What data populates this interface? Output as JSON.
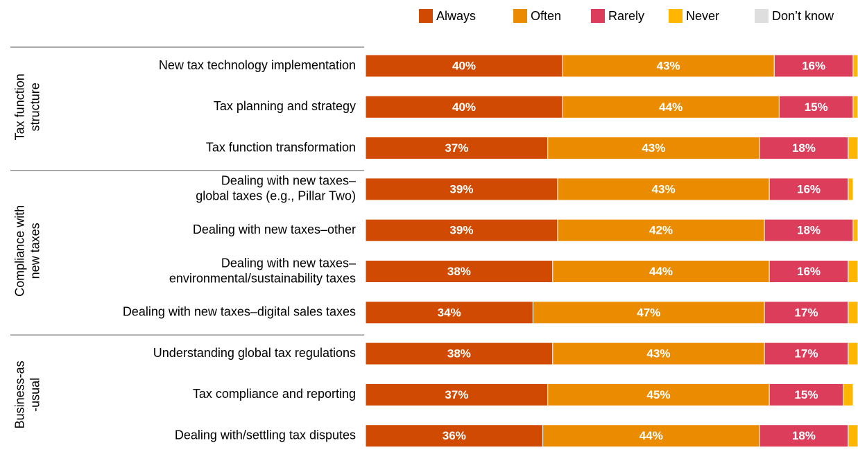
{
  "chart_data": {
    "type": "stacked_bar_horizontal",
    "categories": [
      [
        "New tax technology implementation"
      ],
      [
        "Tax planning and strategy"
      ],
      [
        "Tax function transformation"
      ],
      [
        "Dealing with new taxes–",
        "global taxes (e.g., Pillar Two)"
      ],
      [
        "Dealing with new taxes–other"
      ],
      [
        "Dealing with new taxes–",
        "environmental/sustainability taxes"
      ],
      [
        "Dealing with new taxes–digital sales taxes"
      ],
      [
        "Understanding global tax regulations"
      ],
      [
        "Tax compliance and reporting"
      ],
      [
        "Dealing with/settling tax disputes"
      ]
    ],
    "groups": [
      {
        "label": [
          "Tax function",
          "structure"
        ],
        "rows": [
          0,
          2
        ]
      },
      {
        "label": [
          "Compliance with",
          "new taxes"
        ],
        "rows": [
          3,
          6
        ]
      },
      {
        "label": [
          "Business-as",
          "-usual"
        ],
        "rows": [
          7,
          9
        ]
      }
    ],
    "series": [
      {
        "name": "Always",
        "color": "#d04a02",
        "values": [
          40,
          40,
          37,
          39,
          39,
          38,
          34,
          38,
          37,
          36
        ],
        "value_labels": [
          "40%",
          "40%",
          "37%",
          "39%",
          "39%",
          "38%",
          "34%",
          "38%",
          "37%",
          "36%"
        ]
      },
      {
        "name": "Often",
        "color": "#eb8c00",
        "values": [
          43,
          44,
          43,
          43,
          42,
          44,
          47,
          43,
          45,
          44
        ],
        "value_labels": [
          "43%",
          "44%",
          "43%",
          "43%",
          "42%",
          "44%",
          "47%",
          "43%",
          "45%",
          "44%"
        ]
      },
      {
        "name": "Rarely",
        "color": "#db3d5b",
        "values": [
          16,
          15,
          18,
          16,
          18,
          16,
          17,
          17,
          15,
          18
        ],
        "value_labels": [
          "16%",
          "15%",
          "18%",
          "16%",
          "18%",
          "16%",
          "17%",
          "17%",
          "15%",
          "18%"
        ]
      },
      {
        "name": "Never",
        "color": "#ffb600",
        "values": [
          1,
          1,
          2,
          1,
          1,
          2,
          2,
          2,
          2,
          2
        ]
      },
      {
        "name": "Don’t know",
        "color": "#dedede",
        "values": [
          0,
          0,
          0,
          0,
          0,
          0,
          0,
          0,
          0,
          0
        ]
      }
    ],
    "xlim": [
      0,
      100
    ]
  }
}
